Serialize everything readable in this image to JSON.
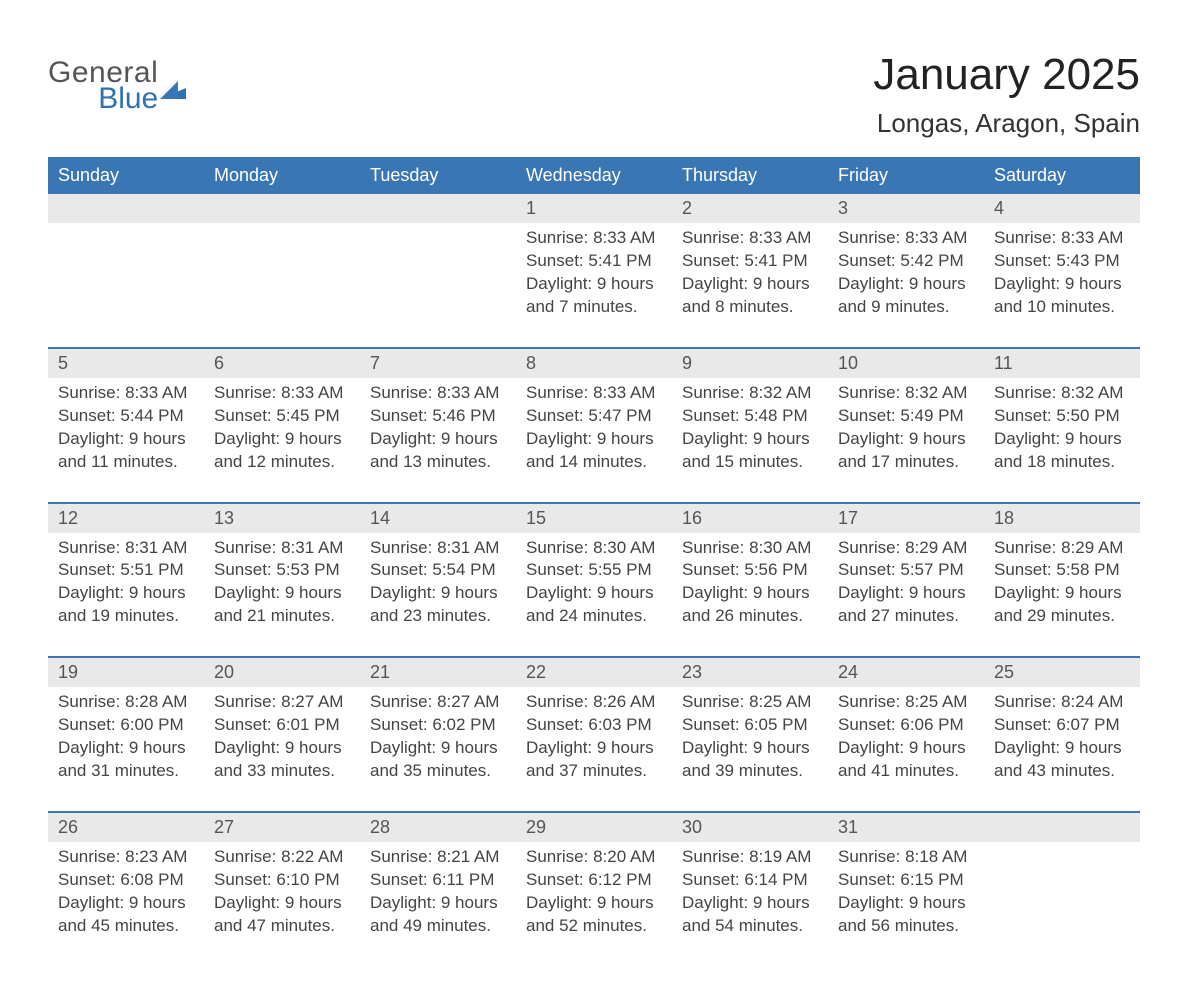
{
  "brand": {
    "general": "General",
    "blue": "Blue"
  },
  "header": {
    "month_title": "January 2025",
    "location": "Longas, Aragon, Spain"
  },
  "colors": {
    "header_bg": "#3a76b4",
    "daynum_bg": "#e9e9e9",
    "rule": "#3a76b4",
    "text": "#333333",
    "brand_blue": "#2f72b2"
  },
  "weekdays": [
    "Sunday",
    "Monday",
    "Tuesday",
    "Wednesday",
    "Thursday",
    "Friday",
    "Saturday"
  ],
  "weeks": [
    {
      "days": [
        {
          "num": "",
          "sunrise": "",
          "sunset": "",
          "day1": "",
          "day2": ""
        },
        {
          "num": "",
          "sunrise": "",
          "sunset": "",
          "day1": "",
          "day2": ""
        },
        {
          "num": "",
          "sunrise": "",
          "sunset": "",
          "day1": "",
          "day2": ""
        },
        {
          "num": "1",
          "sunrise": "Sunrise: 8:33 AM",
          "sunset": "Sunset: 5:41 PM",
          "day1": "Daylight: 9 hours",
          "day2": "and 7 minutes."
        },
        {
          "num": "2",
          "sunrise": "Sunrise: 8:33 AM",
          "sunset": "Sunset: 5:41 PM",
          "day1": "Daylight: 9 hours",
          "day2": "and 8 minutes."
        },
        {
          "num": "3",
          "sunrise": "Sunrise: 8:33 AM",
          "sunset": "Sunset: 5:42 PM",
          "day1": "Daylight: 9 hours",
          "day2": "and 9 minutes."
        },
        {
          "num": "4",
          "sunrise": "Sunrise: 8:33 AM",
          "sunset": "Sunset: 5:43 PM",
          "day1": "Daylight: 9 hours",
          "day2": "and 10 minutes."
        }
      ]
    },
    {
      "days": [
        {
          "num": "5",
          "sunrise": "Sunrise: 8:33 AM",
          "sunset": "Sunset: 5:44 PM",
          "day1": "Daylight: 9 hours",
          "day2": "and 11 minutes."
        },
        {
          "num": "6",
          "sunrise": "Sunrise: 8:33 AM",
          "sunset": "Sunset: 5:45 PM",
          "day1": "Daylight: 9 hours",
          "day2": "and 12 minutes."
        },
        {
          "num": "7",
          "sunrise": "Sunrise: 8:33 AM",
          "sunset": "Sunset: 5:46 PM",
          "day1": "Daylight: 9 hours",
          "day2": "and 13 minutes."
        },
        {
          "num": "8",
          "sunrise": "Sunrise: 8:33 AM",
          "sunset": "Sunset: 5:47 PM",
          "day1": "Daylight: 9 hours",
          "day2": "and 14 minutes."
        },
        {
          "num": "9",
          "sunrise": "Sunrise: 8:32 AM",
          "sunset": "Sunset: 5:48 PM",
          "day1": "Daylight: 9 hours",
          "day2": "and 15 minutes."
        },
        {
          "num": "10",
          "sunrise": "Sunrise: 8:32 AM",
          "sunset": "Sunset: 5:49 PM",
          "day1": "Daylight: 9 hours",
          "day2": "and 17 minutes."
        },
        {
          "num": "11",
          "sunrise": "Sunrise: 8:32 AM",
          "sunset": "Sunset: 5:50 PM",
          "day1": "Daylight: 9 hours",
          "day2": "and 18 minutes."
        }
      ]
    },
    {
      "days": [
        {
          "num": "12",
          "sunrise": "Sunrise: 8:31 AM",
          "sunset": "Sunset: 5:51 PM",
          "day1": "Daylight: 9 hours",
          "day2": "and 19 minutes."
        },
        {
          "num": "13",
          "sunrise": "Sunrise: 8:31 AM",
          "sunset": "Sunset: 5:53 PM",
          "day1": "Daylight: 9 hours",
          "day2": "and 21 minutes."
        },
        {
          "num": "14",
          "sunrise": "Sunrise: 8:31 AM",
          "sunset": "Sunset: 5:54 PM",
          "day1": "Daylight: 9 hours",
          "day2": "and 23 minutes."
        },
        {
          "num": "15",
          "sunrise": "Sunrise: 8:30 AM",
          "sunset": "Sunset: 5:55 PM",
          "day1": "Daylight: 9 hours",
          "day2": "and 24 minutes."
        },
        {
          "num": "16",
          "sunrise": "Sunrise: 8:30 AM",
          "sunset": "Sunset: 5:56 PM",
          "day1": "Daylight: 9 hours",
          "day2": "and 26 minutes."
        },
        {
          "num": "17",
          "sunrise": "Sunrise: 8:29 AM",
          "sunset": "Sunset: 5:57 PM",
          "day1": "Daylight: 9 hours",
          "day2": "and 27 minutes."
        },
        {
          "num": "18",
          "sunrise": "Sunrise: 8:29 AM",
          "sunset": "Sunset: 5:58 PM",
          "day1": "Daylight: 9 hours",
          "day2": "and 29 minutes."
        }
      ]
    },
    {
      "days": [
        {
          "num": "19",
          "sunrise": "Sunrise: 8:28 AM",
          "sunset": "Sunset: 6:00 PM",
          "day1": "Daylight: 9 hours",
          "day2": "and 31 minutes."
        },
        {
          "num": "20",
          "sunrise": "Sunrise: 8:27 AM",
          "sunset": "Sunset: 6:01 PM",
          "day1": "Daylight: 9 hours",
          "day2": "and 33 minutes."
        },
        {
          "num": "21",
          "sunrise": "Sunrise: 8:27 AM",
          "sunset": "Sunset: 6:02 PM",
          "day1": "Daylight: 9 hours",
          "day2": "and 35 minutes."
        },
        {
          "num": "22",
          "sunrise": "Sunrise: 8:26 AM",
          "sunset": "Sunset: 6:03 PM",
          "day1": "Daylight: 9 hours",
          "day2": "and 37 minutes."
        },
        {
          "num": "23",
          "sunrise": "Sunrise: 8:25 AM",
          "sunset": "Sunset: 6:05 PM",
          "day1": "Daylight: 9 hours",
          "day2": "and 39 minutes."
        },
        {
          "num": "24",
          "sunrise": "Sunrise: 8:25 AM",
          "sunset": "Sunset: 6:06 PM",
          "day1": "Daylight: 9 hours",
          "day2": "and 41 minutes."
        },
        {
          "num": "25",
          "sunrise": "Sunrise: 8:24 AM",
          "sunset": "Sunset: 6:07 PM",
          "day1": "Daylight: 9 hours",
          "day2": "and 43 minutes."
        }
      ]
    },
    {
      "days": [
        {
          "num": "26",
          "sunrise": "Sunrise: 8:23 AM",
          "sunset": "Sunset: 6:08 PM",
          "day1": "Daylight: 9 hours",
          "day2": "and 45 minutes."
        },
        {
          "num": "27",
          "sunrise": "Sunrise: 8:22 AM",
          "sunset": "Sunset: 6:10 PM",
          "day1": "Daylight: 9 hours",
          "day2": "and 47 minutes."
        },
        {
          "num": "28",
          "sunrise": "Sunrise: 8:21 AM",
          "sunset": "Sunset: 6:11 PM",
          "day1": "Daylight: 9 hours",
          "day2": "and 49 minutes."
        },
        {
          "num": "29",
          "sunrise": "Sunrise: 8:20 AM",
          "sunset": "Sunset: 6:12 PM",
          "day1": "Daylight: 9 hours",
          "day2": "and 52 minutes."
        },
        {
          "num": "30",
          "sunrise": "Sunrise: 8:19 AM",
          "sunset": "Sunset: 6:14 PM",
          "day1": "Daylight: 9 hours",
          "day2": "and 54 minutes."
        },
        {
          "num": "31",
          "sunrise": "Sunrise: 8:18 AM",
          "sunset": "Sunset: 6:15 PM",
          "day1": "Daylight: 9 hours",
          "day2": "and 56 minutes."
        },
        {
          "num": "",
          "sunrise": "",
          "sunset": "",
          "day1": "",
          "day2": ""
        }
      ]
    }
  ]
}
